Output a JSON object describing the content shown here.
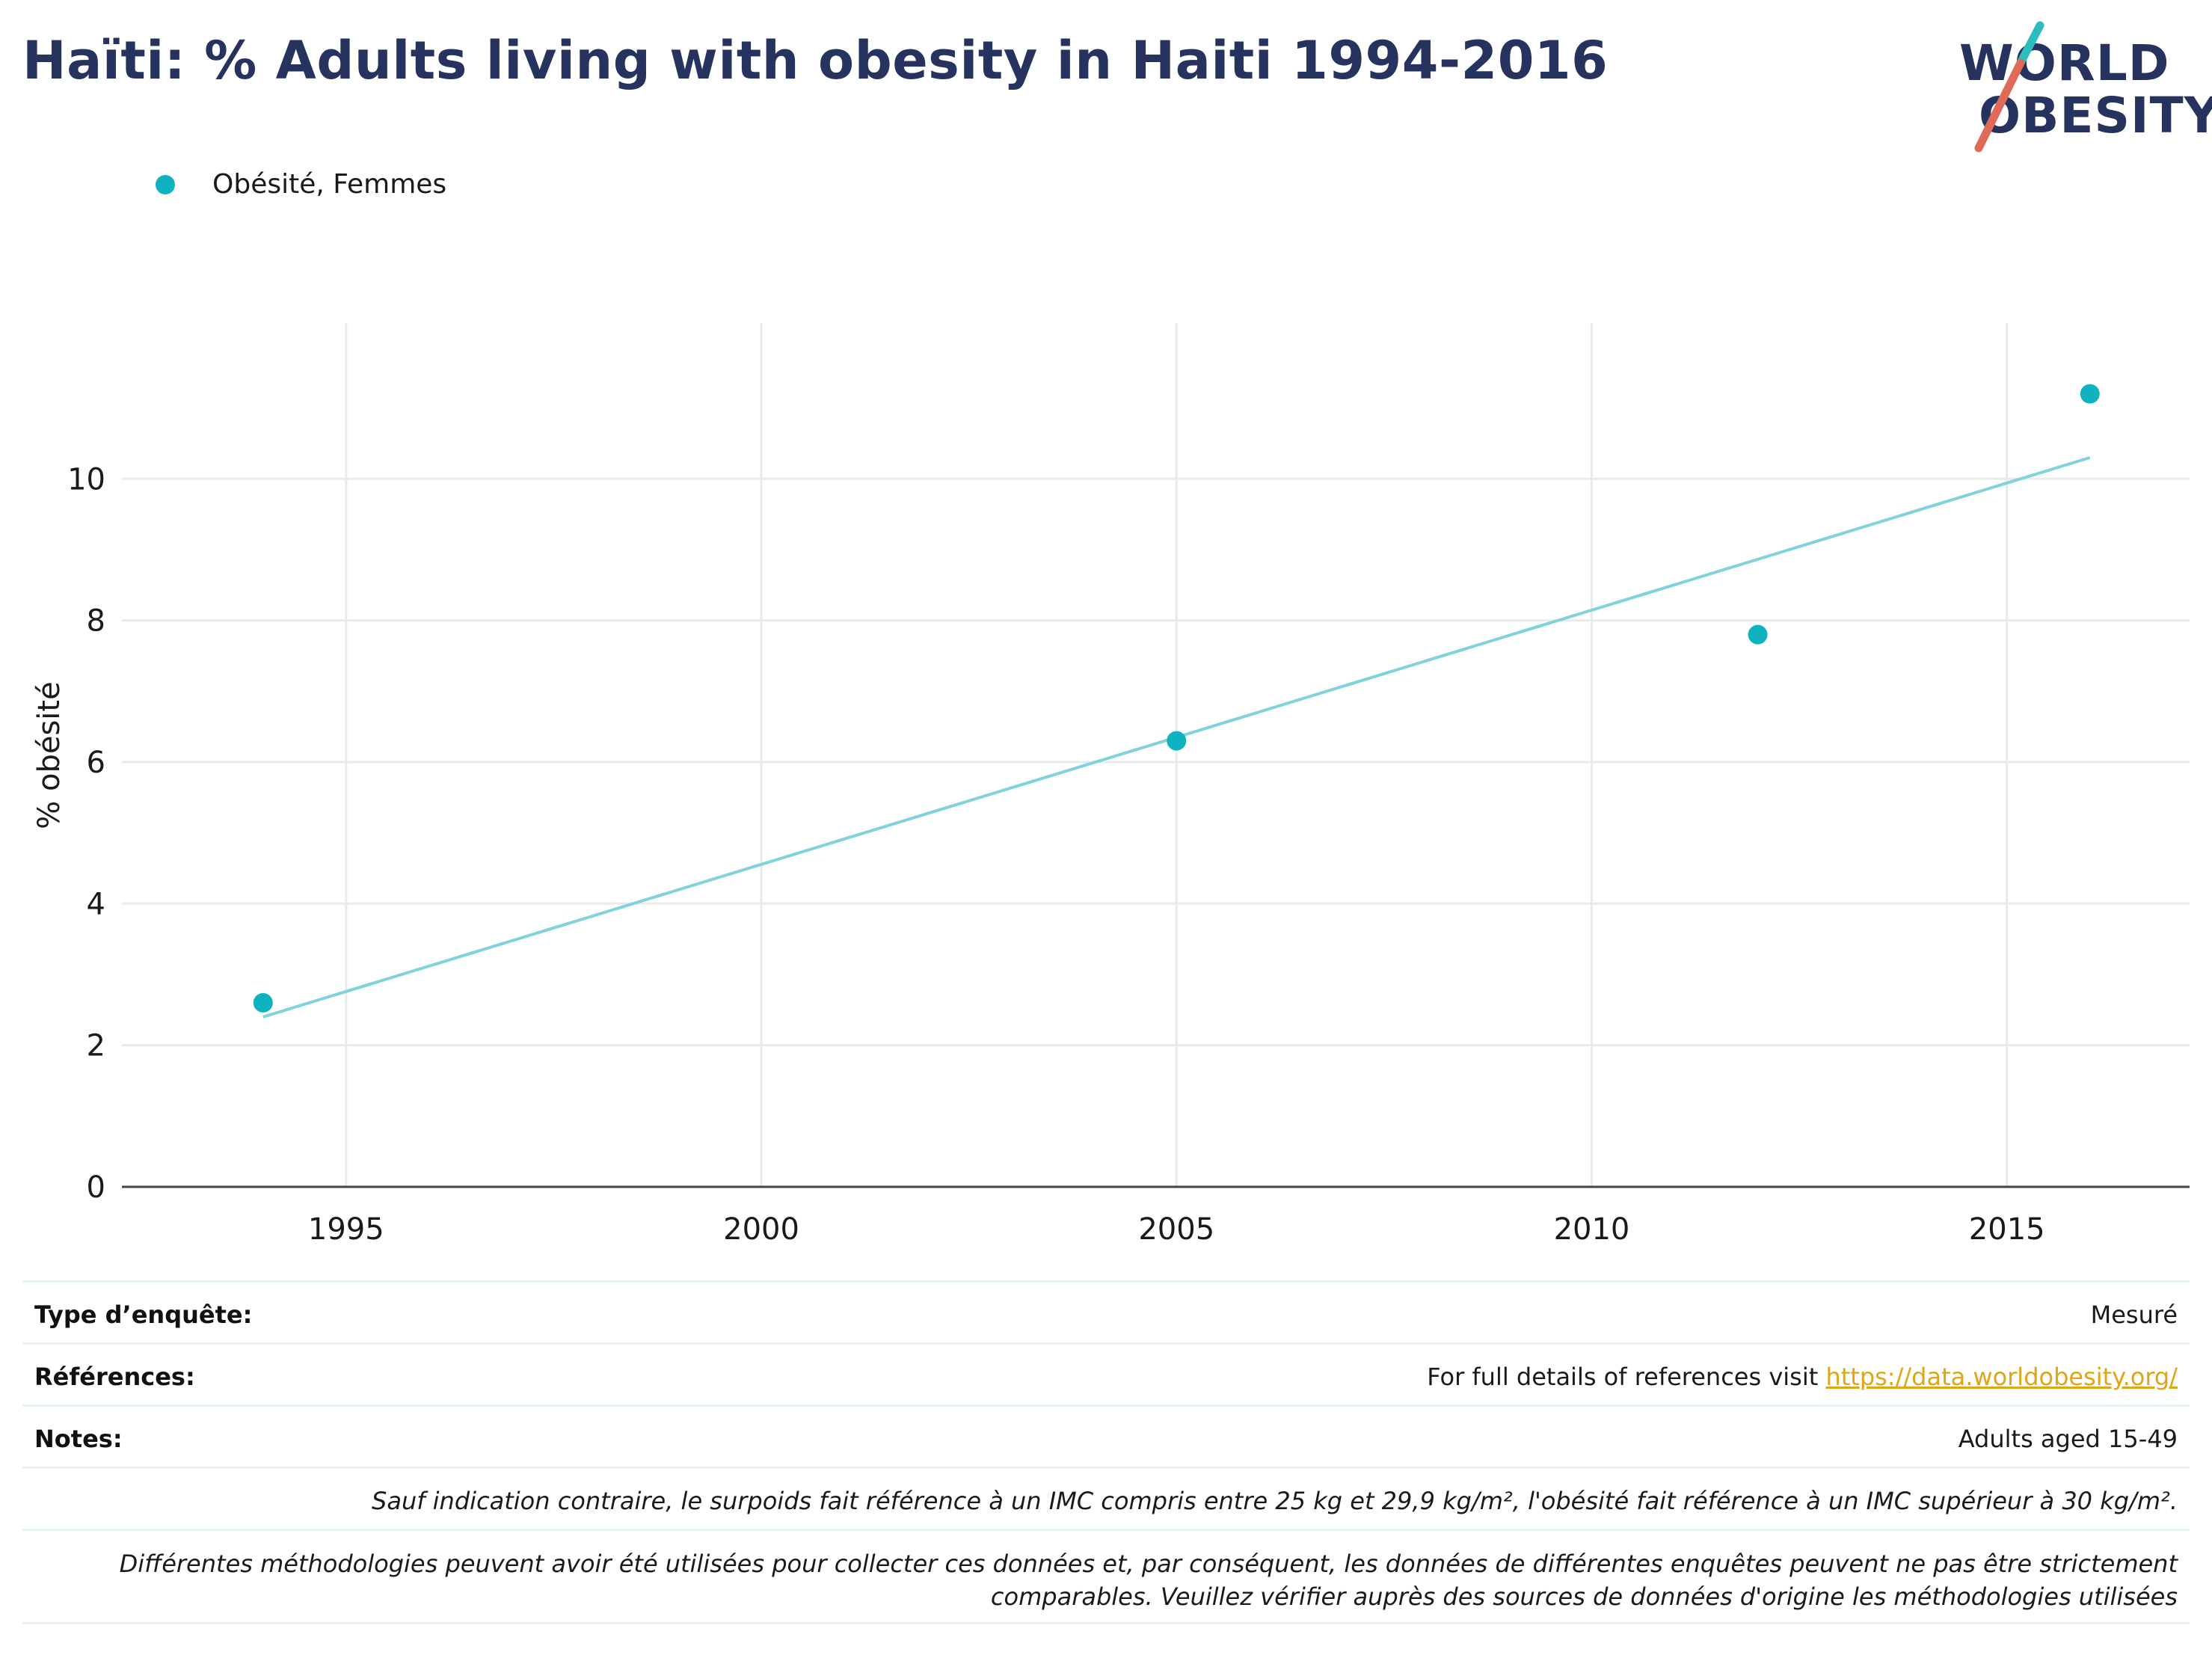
{
  "title": "Haïti: % Adults living with obesity in Haiti 1994-2016",
  "logo": {
    "line1": "WORLD",
    "line2": "OBESITY"
  },
  "colors": {
    "accent": "#0fb2bf",
    "trend": "#7fd3db",
    "title": "#27335f",
    "link": "#e0a516"
  },
  "chart_data": {
    "type": "scatter",
    "title": "Haïti: % Adults living with obesity in Haiti 1994-2016",
    "xlabel": "",
    "ylabel": "% obésité",
    "xlim": [
      1992.3,
      2017.2
    ],
    "ylim": [
      0,
      12.2
    ],
    "x_ticks": [
      1995,
      2000,
      2005,
      2010,
      2015
    ],
    "y_ticks": [
      0,
      2,
      4,
      6,
      8,
      10
    ],
    "grid": true,
    "legend_position": "top-left",
    "series": [
      {
        "name": "Obésité, Femmes",
        "x": [
          1994,
          2005,
          2012,
          2016
        ],
        "y": [
          2.6,
          6.3,
          7.8,
          11.2
        ]
      }
    ],
    "trendline": {
      "x": [
        1994,
        2016
      ],
      "y": [
        2.4,
        10.3
      ]
    }
  },
  "info": {
    "survey_type_label": "Type d’enquête:",
    "survey_type_value": "Mesuré",
    "references_label": "Références:",
    "references_text": "For full details of references visit ",
    "references_link": "https://data.worldobesity.org/",
    "notes_label": "Notes:",
    "notes_value": "Adults aged 15-49",
    "note_bmi": "Sauf indication contraire, le surpoids fait référence à un IMC compris entre 25 kg et 29,9 kg/m², l'obésité fait référence à un IMC supérieur à 30 kg/m².",
    "note_method_1": "Différentes méthodologies peuvent avoir été utilisées pour collecter ces données et, par conséquent, les données de différentes enquêtes peuvent ne pas être strictement",
    "note_method_2": "comparables. Veuillez vérifier auprès des sources de données d'origine les méthodologies utilisées"
  }
}
